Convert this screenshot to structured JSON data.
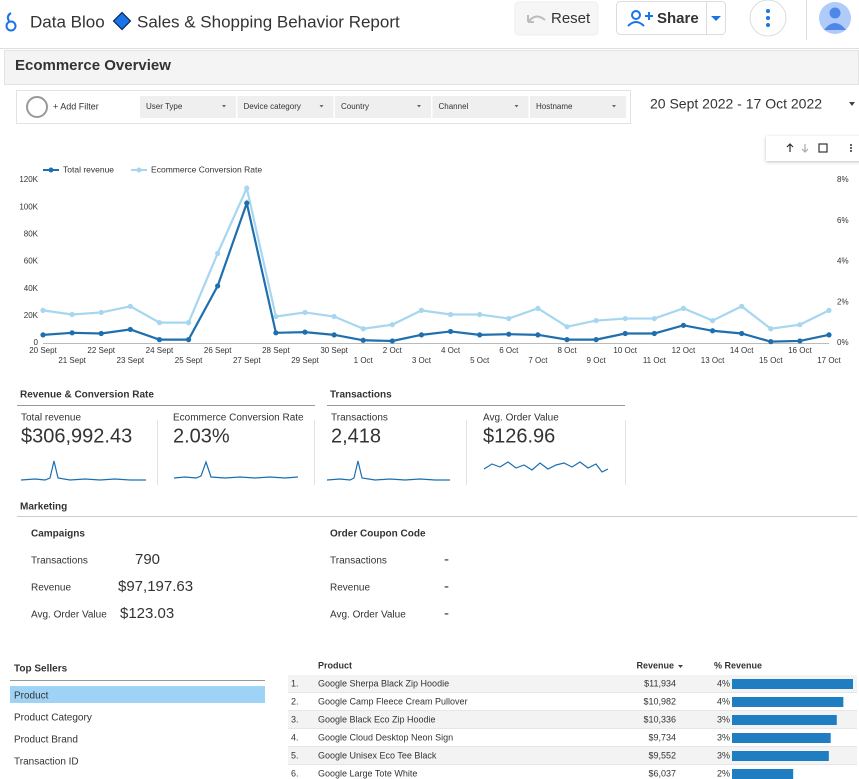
{
  "header": {
    "app_name": "Data Bloo",
    "report_title": "Sales & Shopping Behavior Report",
    "reset": "Reset",
    "share": "Share"
  },
  "page_title": "Ecommerce Overview",
  "filters": {
    "add_filter": "+ Add Filter",
    "controls": [
      "User Type",
      "Device category",
      "Country",
      "Channel",
      "Hostname"
    ],
    "date_range": "20 Sept 2022 - 17 Oct 2022"
  },
  "chart_data": {
    "type": "line",
    "categories": [
      "20 Sept",
      "21 Sept",
      "22 Sept",
      "23 Sept",
      "24 Sept",
      "25 Sept",
      "26 Sept",
      "27 Sept",
      "28 Sept",
      "29 Sept",
      "30 Sept",
      "1 Oct",
      "2 Oct",
      "3 Oct",
      "4 Oct",
      "5 Oct",
      "6 Oct",
      "7 Oct",
      "8 Oct",
      "9 Oct",
      "10 Oct",
      "11 Oct",
      "12 Oct",
      "13 Oct",
      "14 Oct",
      "15 Oct",
      "16 Oct",
      "17 Oct"
    ],
    "series": [
      {
        "name": "Total revenue",
        "color": "#1f6fae",
        "values": [
          6000,
          7500,
          7000,
          10000,
          2500,
          2500,
          42000,
          103000,
          7500,
          8000,
          6000,
          2000,
          1500,
          6000,
          8500,
          6000,
          6500,
          6000,
          2500,
          2500,
          7000,
          7000,
          13000,
          9000,
          7000,
          1000,
          1500,
          6000
        ]
      },
      {
        "name": "Ecommerce Conversion Rate",
        "color": "#a6d6f0",
        "axis": "y2",
        "values": [
          1.6,
          1.4,
          1.5,
          1.8,
          1.0,
          1.0,
          4.4,
          7.6,
          1.3,
          1.5,
          1.3,
          0.7,
          0.9,
          1.6,
          1.4,
          1.4,
          1.2,
          1.7,
          0.8,
          1.1,
          1.2,
          1.2,
          1.7,
          1.1,
          1.8,
          0.7,
          0.9,
          1.6
        ]
      }
    ],
    "ylim": [
      0,
      120000
    ],
    "yticks": [
      0,
      {
        "value": 20000,
        "label": "20K"
      },
      {
        "value": 40000,
        "label": "40K"
      },
      {
        "value": 60000,
        "label": "60K"
      },
      {
        "value": 80000,
        "label": "80K"
      },
      {
        "value": 100000,
        "label": "100K"
      },
      {
        "value": 120000,
        "label": "120K"
      }
    ],
    "y2lim": [
      0,
      8
    ],
    "y2ticks": [
      {
        "value": 0,
        "label": "0%"
      },
      {
        "value": 2,
        "label": "2%"
      },
      {
        "value": 4,
        "label": "4%"
      },
      {
        "value": 6,
        "label": "6%"
      },
      {
        "value": 8,
        "label": "8%"
      }
    ],
    "grid": false,
    "legend": "top-left"
  },
  "scorecards": [
    {
      "title": "Revenue & Conversion Rate",
      "cards": [
        {
          "label": "Total revenue",
          "value": "$306,992.43"
        },
        {
          "label": "Ecommerce Conversion Rate",
          "value": "2.03%"
        }
      ]
    },
    {
      "title": "Transactions",
      "cards": [
        {
          "label": "Transactions",
          "value": "2,418"
        },
        {
          "label": "Avg. Order Value",
          "value": "$126.96"
        }
      ]
    }
  ],
  "marketing": {
    "title": "Marketing",
    "sections": [
      {
        "title": "Campaigns",
        "rows": [
          {
            "label": "Transactions",
            "value": "790"
          },
          {
            "label": "Revenue",
            "value": "$97,197.63"
          },
          {
            "label": "Avg. Order Value",
            "value": "$123.03"
          }
        ]
      },
      {
        "title": "Order Coupon Code",
        "rows": [
          {
            "label": "Transactions",
            "value": "-"
          },
          {
            "label": "Revenue",
            "value": "-"
          },
          {
            "label": "Avg. Order Value",
            "value": "-"
          }
        ]
      }
    ]
  },
  "top_sellers": {
    "title": "Top Sellers",
    "dimensions": [
      "Product",
      "Product Category",
      "Product Brand",
      "Transaction ID"
    ],
    "table": {
      "columns": [
        "Product",
        "Revenue",
        "% Revenue"
      ],
      "rows": [
        {
          "rank": "1.",
          "product": "Google Sherpa Black Zip Hoodie",
          "revenue": {
            "value": 11934,
            "label": "$11,934"
          },
          "share": "4%"
        },
        {
          "rank": "2.",
          "product": "Google Camp Fleece Cream Pullover",
          "revenue": {
            "value": 10982,
            "label": "$10,982"
          },
          "share": "4%"
        },
        {
          "rank": "3.",
          "product": "Google Black Eco Zip Hoodie",
          "revenue": {
            "value": 10336,
            "label": "$10,336"
          },
          "share": "3%"
        },
        {
          "rank": "4.",
          "product": "Google Cloud Desktop Neon Sign",
          "revenue": {
            "value": 9734,
            "label": "$9,734"
          },
          "share": "3%"
        },
        {
          "rank": "5.",
          "product": "Google Unisex Eco Tee Black",
          "revenue": {
            "value": 9552,
            "label": "$9,552"
          },
          "share": "3%"
        },
        {
          "rank": "6.",
          "product": "Google Large Tote White",
          "revenue": {
            "value": 6037,
            "label": "$6,037"
          },
          "share": "2%"
        }
      ]
    }
  }
}
